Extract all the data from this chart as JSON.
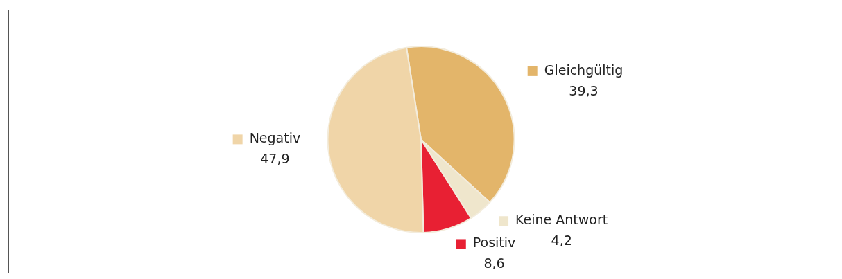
{
  "chart_data": {
    "type": "pie",
    "categories": [
      "Gleichgültig",
      "Keine Antwort",
      "Positiv",
      "Negativ"
    ],
    "values": [
      39.3,
      4.2,
      8.6,
      47.9
    ],
    "colors": [
      "#e3b56a",
      "#efe6cc",
      "#e82033",
      "#f0d5a8"
    ],
    "value_labels": [
      "39,3",
      "4,2",
      "8,6",
      "47,9"
    ],
    "legend": "right"
  }
}
